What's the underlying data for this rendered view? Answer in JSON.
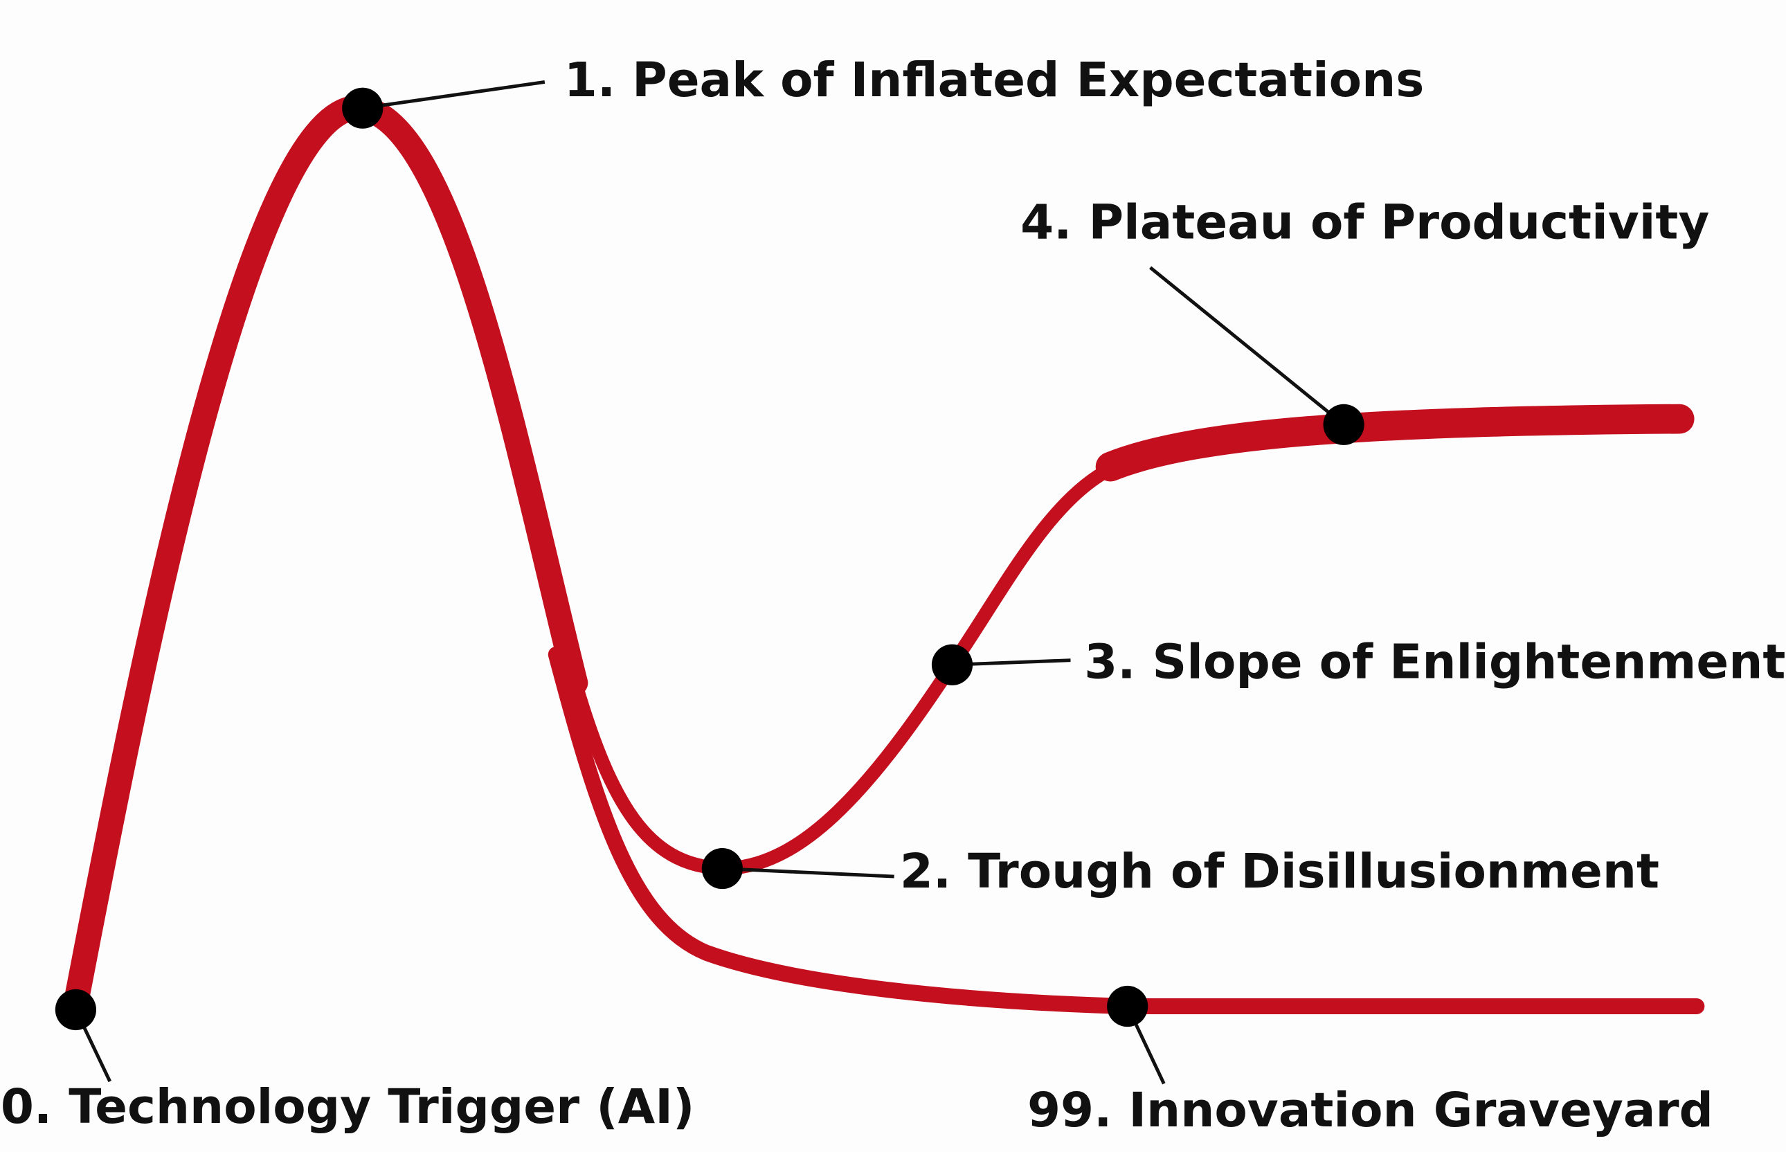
{
  "nodes": [
    {
      "label": "0. Technology Trigger (AI)"
    },
    {
      "label": "1. Peak of Inflated Expectations"
    },
    {
      "label": "2. Trough of Disillusionment"
    },
    {
      "label": "3. Slope of Enlightenment"
    },
    {
      "label": "4. Plateau of Productivity"
    },
    {
      "label": "99. Innovation Graveyard"
    }
  ]
}
